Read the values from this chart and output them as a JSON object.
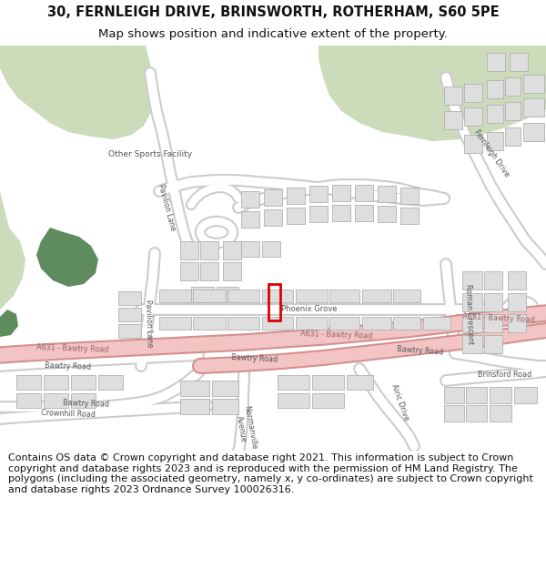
{
  "title_line1": "30, FERNLEIGH DRIVE, BRINSWORTH, ROTHERHAM, S60 5PE",
  "title_line2": "Map shows position and indicative extent of the property.",
  "footer_text": "Contains OS data © Crown copyright and database right 2021. This information is subject to Crown copyright and database rights 2023 and is reproduced with the permission of HM Land Registry. The polygons (including the associated geometry, namely x, y co-ordinates) are subject to Crown copyright and database rights 2023 Ordnance Survey 100026316.",
  "fig_width": 6.0,
  "fig_height": 6.25,
  "dpi": 100,
  "map_bg": "#f2f2ec",
  "green_light": "#ccdcbb",
  "green_dark": "#5f8c5f",
  "road_white": "#ffffff",
  "road_edge": "#cccccc",
  "road_pink": "#f2c4c4",
  "road_pink_edge": "#d49090",
  "bldg_fill": "#dedede",
  "bldg_edge": "#b0b0b0",
  "highlight": "#dd0000",
  "title_fs": 10.5,
  "subtitle_fs": 9.5,
  "footer_fs": 8.0,
  "label_fs": 6.0,
  "label_color": "#555555",
  "pink_label_color": "#996666"
}
